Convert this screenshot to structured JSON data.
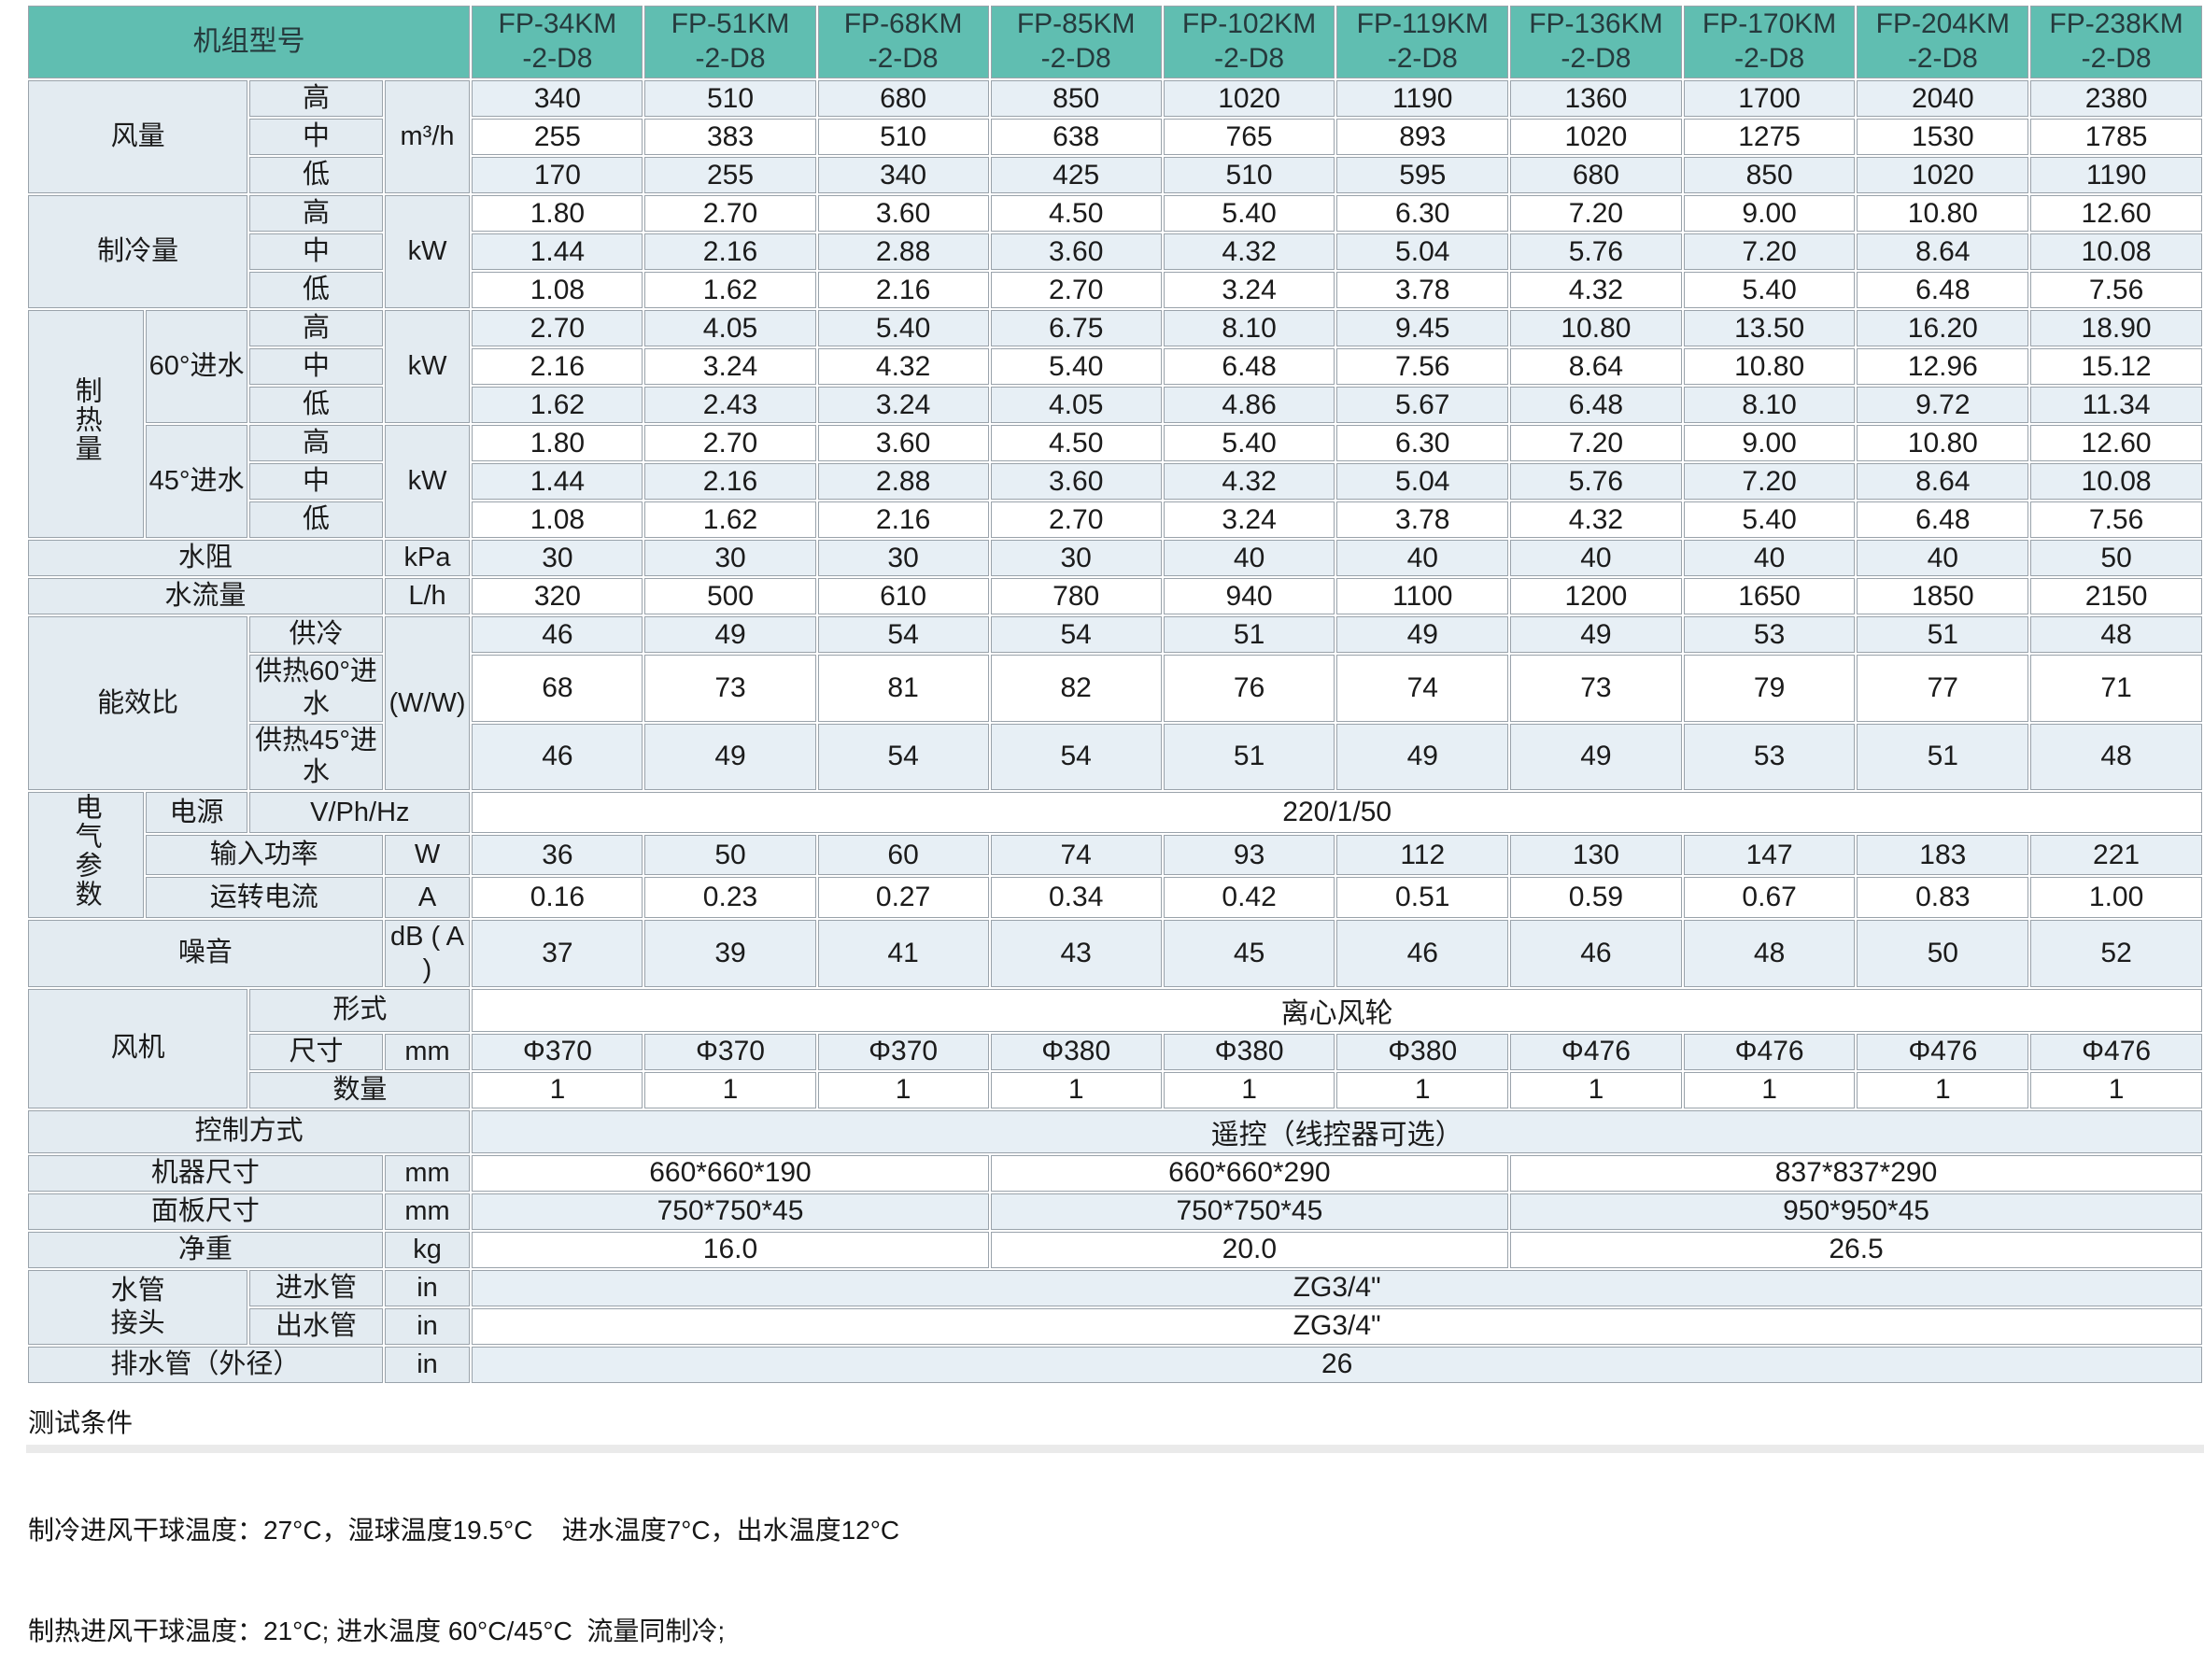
{
  "colors": {
    "header_bg": "#60beb1",
    "header_text": "#263a3d",
    "label_bg": "#e3ebf1",
    "stripe_bg": "#e7eff5",
    "border": "#9aa3ab",
    "text": "#1b1b1b"
  },
  "header": {
    "corner": "机组型号",
    "models": [
      "FP-34KM\n-2-D8",
      "FP-51KM\n-2-D8",
      "FP-68KM\n-2-D8",
      "FP-85KM\n-2-D8",
      "FP-102KM\n-2-D8",
      "FP-119KM\n-2-D8",
      "FP-136KM\n-2-D8",
      "FP-170KM\n-2-D8",
      "FP-204KM\n-2-D8",
      "FP-238KM\n-2-D8"
    ]
  },
  "rows": [
    {
      "labels": [
        {
          "t": "风量",
          "cs": 2,
          "rs": 3
        },
        {
          "t": "高"
        },
        {
          "t": "m³/h",
          "rs": 3,
          "u": true
        }
      ],
      "values": [
        "340",
        "510",
        "680",
        "850",
        "1020",
        "1190",
        "1360",
        "1700",
        "2040",
        "2380"
      ]
    },
    {
      "labels": [
        {
          "t": "中"
        }
      ],
      "values": [
        "255",
        "383",
        "510",
        "638",
        "765",
        "893",
        "1020",
        "1275",
        "1530",
        "1785"
      ]
    },
    {
      "labels": [
        {
          "t": "低"
        }
      ],
      "values": [
        "170",
        "255",
        "340",
        "425",
        "510",
        "595",
        "680",
        "850",
        "1020",
        "1190"
      ]
    },
    {
      "labels": [
        {
          "t": "制冷量",
          "cs": 2,
          "rs": 3
        },
        {
          "t": "高"
        },
        {
          "t": "kW",
          "rs": 3,
          "u": true
        }
      ],
      "values": [
        "1.80",
        "2.70",
        "3.60",
        "4.50",
        "5.40",
        "6.30",
        "7.20",
        "9.00",
        "10.80",
        "12.60"
      ]
    },
    {
      "labels": [
        {
          "t": "中"
        }
      ],
      "values": [
        "1.44",
        "2.16",
        "2.88",
        "3.60",
        "4.32",
        "5.04",
        "5.76",
        "7.20",
        "8.64",
        "10.08"
      ]
    },
    {
      "labels": [
        {
          "t": "低"
        }
      ],
      "values": [
        "1.08",
        "1.62",
        "2.16",
        "2.70",
        "3.24",
        "3.78",
        "4.32",
        "5.40",
        "6.48",
        "7.56"
      ]
    },
    {
      "labels": [
        {
          "t": "制热量",
          "rs": 6,
          "v": true
        },
        {
          "t": "60°进水",
          "rs": 3
        },
        {
          "t": "高"
        },
        {
          "t": "kW",
          "rs": 3,
          "u": true
        }
      ],
      "values": [
        "2.70",
        "4.05",
        "5.40",
        "6.75",
        "8.10",
        "9.45",
        "10.80",
        "13.50",
        "16.20",
        "18.90"
      ]
    },
    {
      "labels": [
        {
          "t": "中"
        }
      ],
      "values": [
        "2.16",
        "3.24",
        "4.32",
        "5.40",
        "6.48",
        "7.56",
        "8.64",
        "10.80",
        "12.96",
        "15.12"
      ]
    },
    {
      "labels": [
        {
          "t": "低"
        }
      ],
      "values": [
        "1.62",
        "2.43",
        "3.24",
        "4.05",
        "4.86",
        "5.67",
        "6.48",
        "8.10",
        "9.72",
        "11.34"
      ]
    },
    {
      "labels": [
        {
          "t": "45°进水",
          "rs": 3
        },
        {
          "t": "高"
        },
        {
          "t": "kW",
          "rs": 3,
          "u": true
        }
      ],
      "values": [
        "1.80",
        "2.70",
        "3.60",
        "4.50",
        "5.40",
        "6.30",
        "7.20",
        "9.00",
        "10.80",
        "12.60"
      ]
    },
    {
      "labels": [
        {
          "t": "中"
        }
      ],
      "values": [
        "1.44",
        "2.16",
        "2.88",
        "3.60",
        "4.32",
        "5.04",
        "5.76",
        "7.20",
        "8.64",
        "10.08"
      ]
    },
    {
      "labels": [
        {
          "t": "低"
        }
      ],
      "values": [
        "1.08",
        "1.62",
        "2.16",
        "2.70",
        "3.24",
        "3.78",
        "4.32",
        "5.40",
        "6.48",
        "7.56"
      ]
    },
    {
      "labels": [
        {
          "t": "水阻",
          "cs": 3
        },
        {
          "t": "kPa",
          "u": true
        }
      ],
      "values": [
        "30",
        "30",
        "30",
        "30",
        "40",
        "40",
        "40",
        "40",
        "40",
        "50"
      ]
    },
    {
      "labels": [
        {
          "t": "水流量",
          "cs": 3
        },
        {
          "t": "L/h",
          "u": true
        }
      ],
      "values": [
        "320",
        "500",
        "610",
        "780",
        "940",
        "1100",
        "1200",
        "1650",
        "1850",
        "2150"
      ]
    },
    {
      "labels": [
        {
          "t": "能效比",
          "cs": 2,
          "rs": 3
        },
        {
          "t": "供冷"
        },
        {
          "t": "(W/W)",
          "rs": 3,
          "u": true
        }
      ],
      "values": [
        "46",
        "49",
        "54",
        "54",
        "51",
        "49",
        "49",
        "53",
        "51",
        "48"
      ]
    },
    {
      "labels": [
        {
          "t": "供热60°进水"
        }
      ],
      "values": [
        "68",
        "73",
        "81",
        "82",
        "76",
        "74",
        "73",
        "79",
        "77",
        "71"
      ]
    },
    {
      "labels": [
        {
          "t": "供热45°进水"
        }
      ],
      "values": [
        "46",
        "49",
        "54",
        "54",
        "51",
        "49",
        "49",
        "53",
        "51",
        "48"
      ]
    },
    {
      "labels": [
        {
          "t": "电气参数",
          "rs": 3,
          "v": true
        },
        {
          "t": "电源"
        },
        {
          "t": "V/Ph/Hz",
          "cs": 2,
          "u": true
        }
      ],
      "spans": [
        {
          "t": "220/1/50",
          "cs": 10
        }
      ]
    },
    {
      "labels": [
        {
          "t": "输入功率",
          "cs": 2
        },
        {
          "t": "W",
          "u": true
        }
      ],
      "values": [
        "36",
        "50",
        "60",
        "74",
        "93",
        "112",
        "130",
        "147",
        "183",
        "221"
      ]
    },
    {
      "labels": [
        {
          "t": "运转电流",
          "cs": 2
        },
        {
          "t": "A",
          "u": true
        }
      ],
      "values": [
        "0.16",
        "0.23",
        "0.27",
        "0.34",
        "0.42",
        "0.51",
        "0.59",
        "0.67",
        "0.83",
        "1.00"
      ]
    },
    {
      "labels": [
        {
          "t": "噪音",
          "cs": 3
        },
        {
          "t": "dB ( A )",
          "u": true
        }
      ],
      "values": [
        "37",
        "39",
        "41",
        "43",
        "45",
        "46",
        "46",
        "48",
        "50",
        "52"
      ]
    },
    {
      "labels": [
        {
          "t": "风机",
          "cs": 2,
          "rs": 3
        },
        {
          "t": "形式",
          "cs": 2
        }
      ],
      "spans": [
        {
          "t": "离心风轮",
          "cs": 10
        }
      ]
    },
    {
      "labels": [
        {
          "t": "尺寸"
        },
        {
          "t": "mm",
          "u": true
        }
      ],
      "values": [
        "Φ370",
        "Φ370",
        "Φ370",
        "Φ380",
        "Φ380",
        "Φ380",
        "Φ476",
        "Φ476",
        "Φ476",
        "Φ476"
      ]
    },
    {
      "labels": [
        {
          "t": "数量",
          "cs": 2
        }
      ],
      "values": [
        "1",
        "1",
        "1",
        "1",
        "1",
        "1",
        "1",
        "1",
        "1",
        "1"
      ]
    },
    {
      "labels": [
        {
          "t": "控制方式",
          "cs": 4
        }
      ],
      "spans": [
        {
          "t": "遥控（线控器可选）",
          "cs": 10
        }
      ]
    },
    {
      "labels": [
        {
          "t": "机器尺寸",
          "cs": 3
        },
        {
          "t": "mm",
          "u": true
        }
      ],
      "spans": [
        {
          "t": "660*660*190",
          "cs": 3
        },
        {
          "t": "660*660*290",
          "cs": 3
        },
        {
          "t": "837*837*290",
          "cs": 4
        }
      ]
    },
    {
      "labels": [
        {
          "t": "面板尺寸",
          "cs": 3
        },
        {
          "t": "mm",
          "u": true
        }
      ],
      "spans": [
        {
          "t": "750*750*45",
          "cs": 3
        },
        {
          "t": "750*750*45",
          "cs": 3
        },
        {
          "t": "950*950*45",
          "cs": 4
        }
      ]
    },
    {
      "labels": [
        {
          "t": "净重",
          "cs": 3
        },
        {
          "t": "kg",
          "u": true
        }
      ],
      "spans": [
        {
          "t": "16.0",
          "cs": 3
        },
        {
          "t": "20.0",
          "cs": 3
        },
        {
          "t": "26.5",
          "cs": 4
        }
      ]
    },
    {
      "labels": [
        {
          "t": "水管\n接头",
          "cs": 2,
          "rs": 2
        },
        {
          "t": "进水管"
        },
        {
          "t": "in",
          "u": true
        }
      ],
      "spans": [
        {
          "t": "ZG3/4\"",
          "cs": 10
        }
      ]
    },
    {
      "labels": [
        {
          "t": "出水管"
        },
        {
          "t": "in",
          "u": true
        }
      ],
      "spans": [
        {
          "t": "ZG3/4\"",
          "cs": 10
        }
      ]
    },
    {
      "labels": [
        {
          "t": "排水管（外径）",
          "cs": 3
        },
        {
          "t": "in",
          "u": true
        }
      ],
      "spans": [
        {
          "t": "26",
          "cs": 10
        }
      ]
    }
  ],
  "footer": {
    "title": "测试条件",
    "cooling_line": "制冷进风干球温度：27°C，湿球温度19.5°C    进水温度7°C，出水温度12°C",
    "heating_line": "制热进风干球温度：21°C; 进水温度 60°C/45°C  流量同制冷;"
  }
}
